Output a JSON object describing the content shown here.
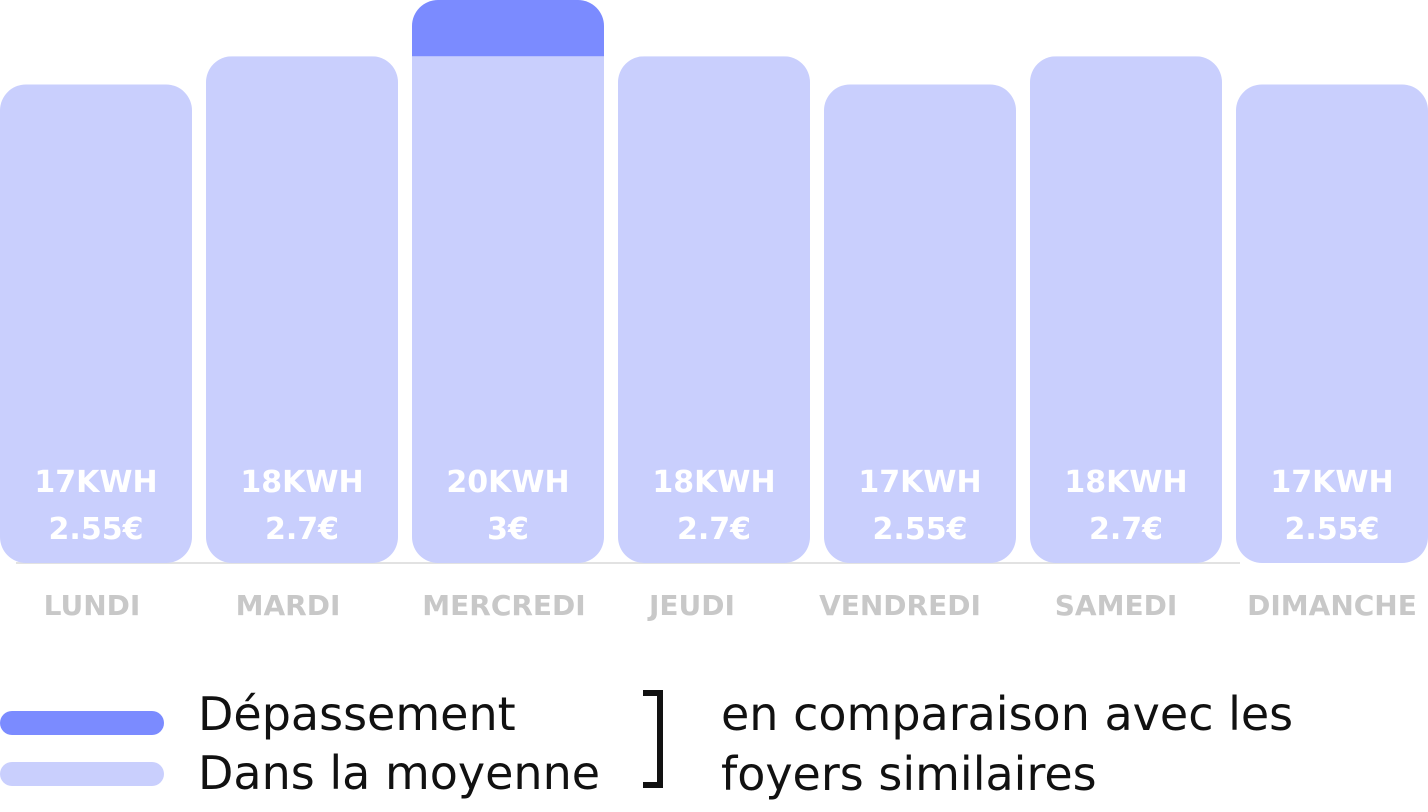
{
  "chart_data": {
    "type": "bar",
    "categories": [
      "LUNDI",
      "MARDI",
      "MERCREDI",
      "JEUDI",
      "VENDREDI",
      "SAMEDI",
      "DIMANCHE"
    ],
    "kwh": [
      17,
      18,
      20,
      18,
      17,
      18,
      17
    ],
    "value_labels": [
      "17KWH",
      "18KWH",
      "20KWH",
      "18KWH",
      "17KWH",
      "18KWH",
      "17KWH"
    ],
    "cost_labels": [
      "2.55€",
      "2.7€",
      "3€",
      "2.7€",
      "2.55€",
      "2.7€",
      "2.55€"
    ],
    "series": [
      {
        "name": "Dans la moyenne",
        "values": [
          17,
          18,
          18,
          18,
          17,
          18,
          17
        ],
        "color": "#c9cffd"
      },
      {
        "name": "Dépassement",
        "values": [
          0,
          0,
          2,
          0,
          0,
          0,
          0
        ],
        "color": "#7b8bff"
      }
    ],
    "xlabel": "",
    "ylabel": "",
    "grid": false,
    "legend_position": "bottom"
  },
  "legend": {
    "items": [
      {
        "label": "Dépassement",
        "color": "#7b8bff"
      },
      {
        "label": "Dans la moyenne",
        "color": "#c9cffd"
      }
    ],
    "comparison_lines": [
      "en comparaison avec les",
      "foyers similaires"
    ]
  },
  "colors": {
    "bar_label": "#ffffff",
    "axis_label": "#c8c8c8",
    "baseline": "#e2e2e2"
  }
}
